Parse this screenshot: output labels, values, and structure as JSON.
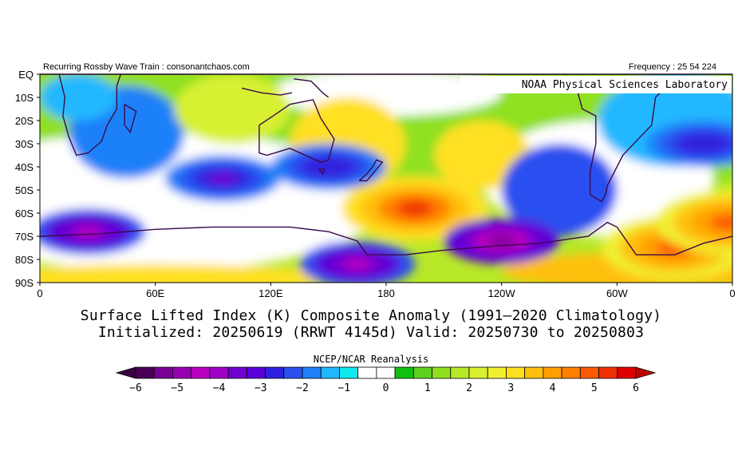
{
  "header": {
    "left": "Recurring Rossby Wave Train : consonantchaos.com",
    "right": "Frequency : 25 54 224"
  },
  "map_credit": "NOAA Physical Sciences Laboratory",
  "lat_labels": [
    "EQ",
    "10S",
    "20S",
    "30S",
    "40S",
    "50S",
    "60S",
    "70S",
    "80S",
    "90S"
  ],
  "lon_labels": [
    "0",
    "60E",
    "120E",
    "180",
    "120W",
    "60W",
    "0"
  ],
  "title_line1": "Surface Lifted Index (K) Composite Anomaly (1991–2020 Climatology)",
  "title_line2": "Initialized: 20250619 (RRWT 4145d) Valid: 20250730 to 20250803",
  "colorbar": {
    "title": "NCEP/NCAR Reanalysis",
    "tick_labels": [
      "−6",
      "−5",
      "−4",
      "−3",
      "−2",
      "−1",
      "0",
      "1",
      "2",
      "3",
      "4",
      "5",
      "6"
    ],
    "colors": [
      "#4a0055",
      "#7a0098",
      "#9a00b4",
      "#b800c0",
      "#a000c8",
      "#7000d0",
      "#5a00d8",
      "#3020e0",
      "#2a50f0",
      "#1f80f8",
      "#20b8ff",
      "#10e8f0",
      "#ffffff",
      "#ffffff",
      "#10c010",
      "#60d020",
      "#90e020",
      "#b8e828",
      "#d8f030",
      "#f0f030",
      "#ffe020",
      "#ffc010",
      "#ffa000",
      "#ff8000",
      "#ff5a00",
      "#f03000",
      "#e00000"
    ],
    "under_color": "#3a0040",
    "over_color": "#c00000"
  },
  "anomaly_features": [
    {
      "sign": "positive",
      "lon": 195,
      "lat": -58,
      "value": 5.5
    },
    {
      "sign": "positive",
      "lon": 330,
      "lat": -75,
      "value": 5
    },
    {
      "sign": "positive",
      "lon": 358,
      "lat": -64,
      "value": 5
    },
    {
      "sign": "negative",
      "lon": 240,
      "lat": -72,
      "value": -5.5
    },
    {
      "sign": "negative",
      "lon": 165,
      "lat": -82,
      "value": -4.5
    },
    {
      "sign": "negative",
      "lon": 25,
      "lat": -68,
      "value": -4.5
    },
    {
      "sign": "negative",
      "lon": 95,
      "lat": -45,
      "value": -3.5
    },
    {
      "sign": "negative",
      "lon": 150,
      "lat": -40,
      "value": -3
    },
    {
      "sign": "negative",
      "lon": 345,
      "lat": -30,
      "value": -3
    }
  ]
}
